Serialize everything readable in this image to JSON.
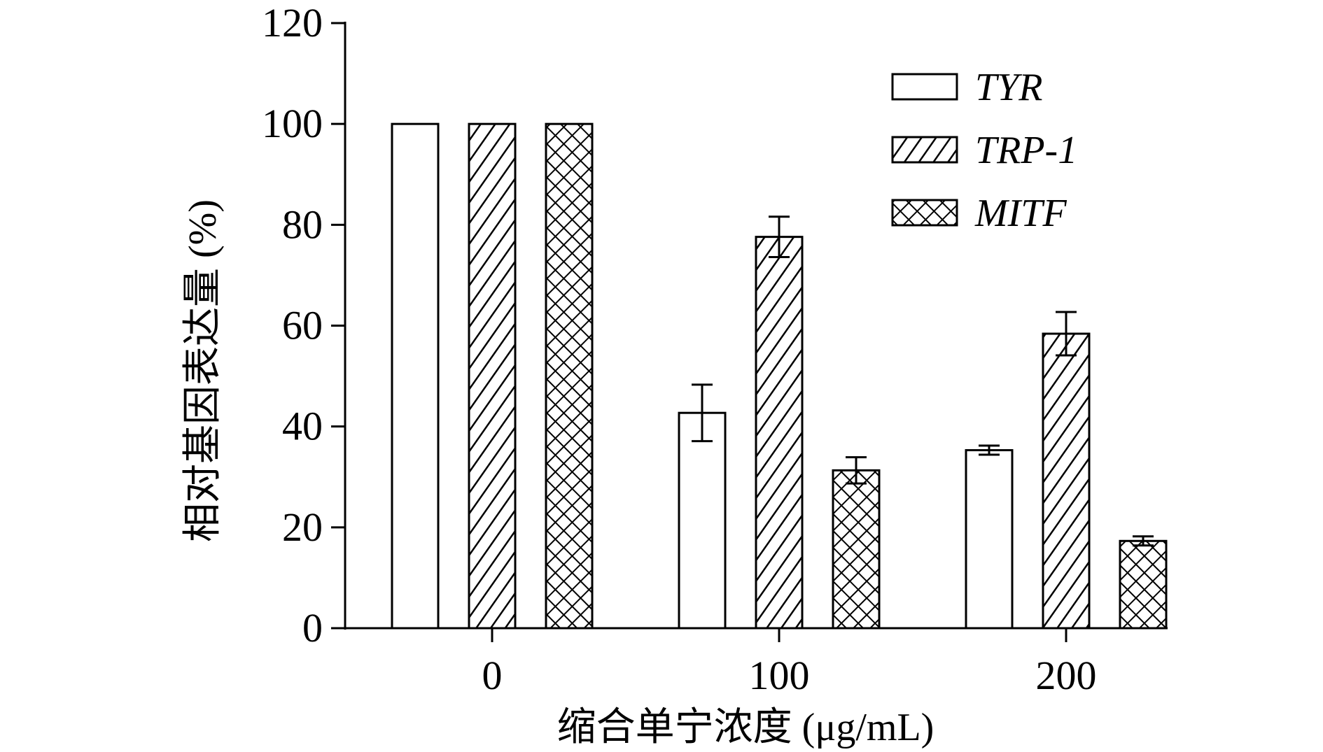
{
  "chart_data": {
    "type": "bar",
    "categories": [
      "0",
      "100",
      "200"
    ],
    "series": [
      {
        "name": "TYR",
        "values": [
          100,
          42.7,
          35.3
        ],
        "errors": [
          0,
          5.6,
          0.9
        ],
        "pattern": "none"
      },
      {
        "name": "TRP-1",
        "values": [
          100,
          77.6,
          58.4
        ],
        "errors": [
          0,
          4.0,
          4.3
        ],
        "pattern": "diagonal"
      },
      {
        "name": "MITF",
        "values": [
          100,
          31.3,
          17.3
        ],
        "errors": [
          0,
          2.6,
          0.9
        ],
        "pattern": "crosshatch"
      }
    ],
    "xlabel": "缩合单宁浓度 (μg/mL)",
    "ylabel": "相对基因表达量 (%)",
    "ylim": [
      0,
      120
    ],
    "yticks": [
      0,
      20,
      40,
      60,
      80,
      100,
      120
    ],
    "legend_position": "top-right",
    "grid": false
  }
}
